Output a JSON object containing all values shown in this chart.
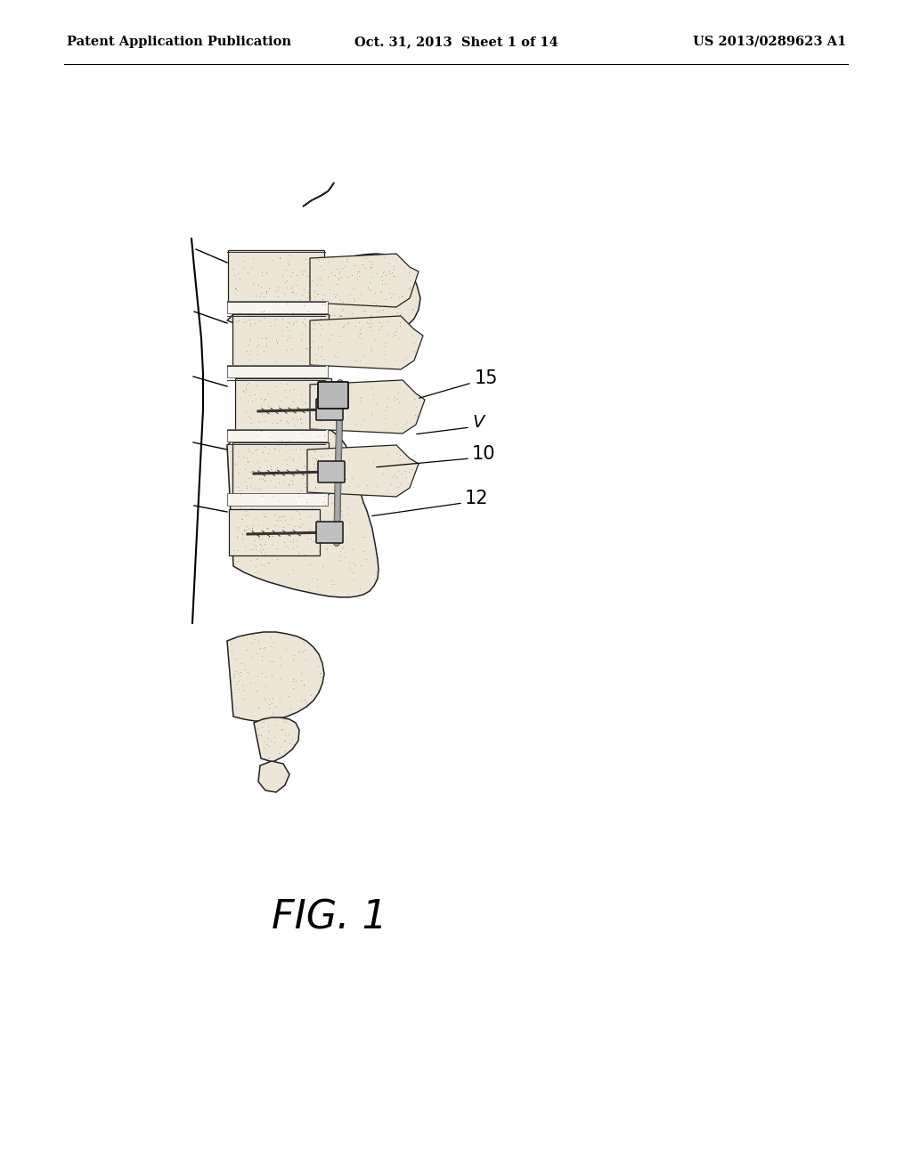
{
  "bg_color": "#ffffff",
  "header_left": "Patent Application Publication",
  "header_center": "Oct. 31, 2013  Sheet 1 of 14",
  "header_right": "US 2013/0289623 A1",
  "fig_label": "FIG. 1",
  "fig_label_fontsize": 32,
  "header_fontsize": 10.5,
  "label_fontsize": 15,
  "spine_color": "#f0ece4",
  "spine_edge": "#111111",
  "stipple_color": "#444444",
  "line_color": "#111111",
  "hardware_color": "#cccccc",
  "hardware_edge": "#000000"
}
